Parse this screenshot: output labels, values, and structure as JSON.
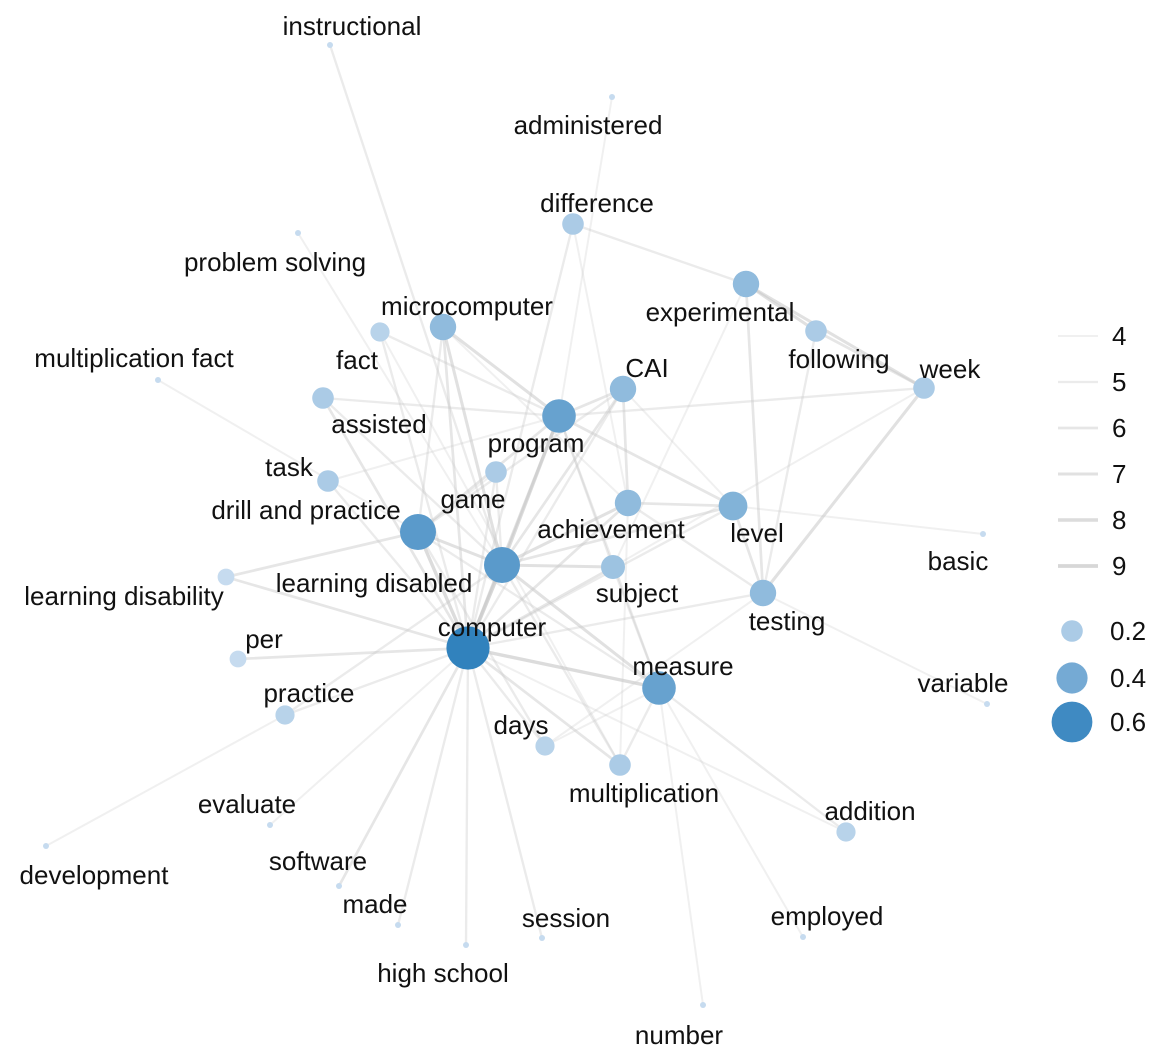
{
  "colors": {
    "edge": "#c8c8c8",
    "node_low": "#c6dbef",
    "node_high": "#3182bd",
    "text": "#111111"
  },
  "legend": {
    "edge_weights": [
      "4",
      "5",
      "6",
      "7",
      "8",
      "9"
    ],
    "node_sizes": [
      "0.2",
      "0.4",
      "0.6"
    ]
  },
  "nodes": [
    {
      "id": "instructional",
      "label": "instructional",
      "size": 0.05
    },
    {
      "id": "administered",
      "label": "administered",
      "size": 0.05
    },
    {
      "id": "difference",
      "label": "difference",
      "size": 0.2
    },
    {
      "id": "problem_solving",
      "label": "problem solving",
      "size": 0.05
    },
    {
      "id": "microcomputer",
      "label": "microcomputer",
      "size": 0.3
    },
    {
      "id": "experimental",
      "label": "experimental",
      "size": 0.3
    },
    {
      "id": "fact",
      "label": "fact",
      "size": 0.15
    },
    {
      "id": "following",
      "label": "following",
      "size": 0.2
    },
    {
      "id": "multiplication_fact",
      "label": "multiplication fact",
      "size": 0.05
    },
    {
      "id": "CAI",
      "label": "CAI",
      "size": 0.3
    },
    {
      "id": "week",
      "label": "week",
      "size": 0.2
    },
    {
      "id": "assisted",
      "label": "assisted",
      "size": 0.2
    },
    {
      "id": "program",
      "label": "program",
      "size": 0.45
    },
    {
      "id": "task",
      "label": "task",
      "size": 0.2
    },
    {
      "id": "game",
      "label": "game",
      "size": 0.2
    },
    {
      "id": "drill_and_practice",
      "label": "drill and practice",
      "size": 0.5
    },
    {
      "id": "achievement",
      "label": "achievement",
      "size": 0.3
    },
    {
      "id": "level",
      "label": "level",
      "size": 0.35
    },
    {
      "id": "basic",
      "label": "basic",
      "size": 0.05
    },
    {
      "id": "learning_disability",
      "label": "learning disability",
      "size": 0.1
    },
    {
      "id": "learning_disabled",
      "label": "learning disabled",
      "size": 0.5
    },
    {
      "id": "subject",
      "label": "subject",
      "size": 0.25
    },
    {
      "id": "testing",
      "label": "testing",
      "size": 0.3
    },
    {
      "id": "computer",
      "label": "computer",
      "size": 0.65
    },
    {
      "id": "per",
      "label": "per",
      "size": 0.1
    },
    {
      "id": "measure",
      "label": "measure",
      "size": 0.45
    },
    {
      "id": "variable",
      "label": "variable",
      "size": 0.05
    },
    {
      "id": "practice",
      "label": "practice",
      "size": 0.15
    },
    {
      "id": "days",
      "label": "days",
      "size": 0.15
    },
    {
      "id": "multiplication",
      "label": "multiplication",
      "size": 0.2
    },
    {
      "id": "evaluate",
      "label": "evaluate",
      "size": 0.05
    },
    {
      "id": "addition",
      "label": "addition",
      "size": 0.15
    },
    {
      "id": "development",
      "label": "development",
      "size": 0.05
    },
    {
      "id": "software",
      "label": "software",
      "size": 0.05
    },
    {
      "id": "made",
      "label": "made",
      "size": 0.05
    },
    {
      "id": "session",
      "label": "session",
      "size": 0.05
    },
    {
      "id": "employed",
      "label": "employed",
      "size": 0.05
    },
    {
      "id": "high_school",
      "label": "high school",
      "size": 0.05
    },
    {
      "id": "number",
      "label": "number",
      "size": 0.05
    }
  ],
  "edges": [
    {
      "source": "instructional",
      "target": "learning_disabled",
      "weight": 5
    },
    {
      "source": "administered",
      "target": "program",
      "weight": 4
    },
    {
      "source": "difference",
      "target": "experimental",
      "weight": 5
    },
    {
      "source": "difference",
      "target": "computer",
      "weight": 5
    },
    {
      "source": "difference",
      "target": "achievement",
      "weight": 4
    },
    {
      "source": "experimental",
      "target": "following",
      "weight": 7
    },
    {
      "source": "experimental",
      "target": "week",
      "weight": 7
    },
    {
      "source": "experimental",
      "target": "testing",
      "weight": 6
    },
    {
      "source": "experimental",
      "target": "subject",
      "weight": 4
    },
    {
      "source": "following",
      "target": "week",
      "weight": 6
    },
    {
      "source": "following",
      "target": "testing",
      "weight": 5
    },
    {
      "source": "week",
      "target": "testing",
      "weight": 7
    },
    {
      "source": "week",
      "target": "program",
      "weight": 5
    },
    {
      "source": "week",
      "target": "subject",
      "weight": 4
    },
    {
      "source": "microcomputer",
      "target": "program",
      "weight": 7
    },
    {
      "source": "microcomputer",
      "target": "learning_disabled",
      "weight": 7
    },
    {
      "source": "microcomputer",
      "target": "computer",
      "weight": 6
    },
    {
      "source": "microcomputer",
      "target": "drill_and_practice",
      "weight": 5
    },
    {
      "source": "microcomputer",
      "target": "achievement",
      "weight": 4
    },
    {
      "source": "problem_solving",
      "target": "learning_disabled",
      "weight": 4
    },
    {
      "source": "fact",
      "target": "program",
      "weight": 5
    },
    {
      "source": "fact",
      "target": "computer",
      "weight": 5
    },
    {
      "source": "fact",
      "target": "multiplication",
      "weight": 4
    },
    {
      "source": "multiplication_fact",
      "target": "drill_and_practice",
      "weight": 4
    },
    {
      "source": "assisted",
      "target": "program",
      "weight": 5
    },
    {
      "source": "assisted",
      "target": "computer",
      "weight": 6
    },
    {
      "source": "assisted",
      "target": "learning_disabled",
      "weight": 5
    },
    {
      "source": "CAI",
      "target": "program",
      "weight": 6
    },
    {
      "source": "CAI",
      "target": "achievement",
      "weight": 6
    },
    {
      "source": "CAI",
      "target": "learning_disabled",
      "weight": 6
    },
    {
      "source": "CAI",
      "target": "drill_and_practice",
      "weight": 5
    },
    {
      "source": "CAI",
      "target": "computer",
      "weight": 5
    },
    {
      "source": "CAI",
      "target": "level",
      "weight": 4
    },
    {
      "source": "program",
      "target": "learning_disabled",
      "weight": 8
    },
    {
      "source": "program",
      "target": "computer",
      "weight": 7
    },
    {
      "source": "program",
      "target": "drill_and_practice",
      "weight": 6
    },
    {
      "source": "program",
      "target": "level",
      "weight": 6
    },
    {
      "source": "program",
      "target": "subject",
      "weight": 5
    },
    {
      "source": "program",
      "target": "measure",
      "weight": 5
    },
    {
      "source": "task",
      "target": "program",
      "weight": 4
    },
    {
      "source": "task",
      "target": "computer",
      "weight": 5
    },
    {
      "source": "game",
      "target": "learning_disabled",
      "weight": 5
    },
    {
      "source": "game",
      "target": "computer",
      "weight": 5
    },
    {
      "source": "game",
      "target": "drill_and_practice",
      "weight": 4
    },
    {
      "source": "drill_and_practice",
      "target": "computer",
      "weight": 8
    },
    {
      "source": "drill_and_practice",
      "target": "learning_disabled",
      "weight": 7
    },
    {
      "source": "drill_and_practice",
      "target": "learning_disability",
      "weight": 6
    },
    {
      "source": "drill_and_practice",
      "target": "days",
      "weight": 5
    },
    {
      "source": "drill_and_practice",
      "target": "measure",
      "weight": 5
    },
    {
      "source": "achievement",
      "target": "learning_disabled",
      "weight": 7
    },
    {
      "source": "achievement",
      "target": "computer",
      "weight": 6
    },
    {
      "source": "achievement",
      "target": "level",
      "weight": 6
    },
    {
      "source": "achievement",
      "target": "testing",
      "weight": 5
    },
    {
      "source": "achievement",
      "target": "multiplication",
      "weight": 4
    },
    {
      "source": "level",
      "target": "learning_disabled",
      "weight": 6
    },
    {
      "source": "level",
      "target": "computer",
      "weight": 5
    },
    {
      "source": "level",
      "target": "basic",
      "weight": 4
    },
    {
      "source": "level",
      "target": "testing",
      "weight": 6
    },
    {
      "source": "learning_disability",
      "target": "computer",
      "weight": 6
    },
    {
      "source": "learning_disabled",
      "target": "computer",
      "weight": 9
    },
    {
      "source": "learning_disabled",
      "target": "subject",
      "weight": 7
    },
    {
      "source": "learning_disabled",
      "target": "measure",
      "weight": 7
    },
    {
      "source": "learning_disabled",
      "target": "multiplication",
      "weight": 5
    },
    {
      "source": "learning_disabled",
      "target": "practice",
      "weight": 5
    },
    {
      "source": "subject",
      "target": "computer",
      "weight": 6
    },
    {
      "source": "subject",
      "target": "measure",
      "weight": 5
    },
    {
      "source": "testing",
      "target": "computer",
      "weight": 5
    },
    {
      "source": "testing",
      "target": "variable",
      "weight": 4
    },
    {
      "source": "testing",
      "target": "days",
      "weight": 4
    },
    {
      "source": "computer",
      "target": "per",
      "weight": 6
    },
    {
      "source": "computer",
      "target": "measure",
      "weight": 8
    },
    {
      "source": "computer",
      "target": "multiplication",
      "weight": 6
    },
    {
      "source": "computer",
      "target": "software",
      "weight": 6
    },
    {
      "source": "computer",
      "target": "made",
      "weight": 5
    },
    {
      "source": "computer",
      "target": "high_school",
      "weight": 5
    },
    {
      "source": "computer",
      "target": "session",
      "weight": 5
    },
    {
      "source": "computer",
      "target": "days",
      "weight": 5
    },
    {
      "source": "computer",
      "target": "evaluate",
      "weight": 4
    },
    {
      "source": "computer",
      "target": "addition",
      "weight": 4
    },
    {
      "source": "measure",
      "target": "multiplication",
      "weight": 5
    },
    {
      "source": "measure",
      "target": "addition",
      "weight": 5
    },
    {
      "source": "measure",
      "target": "employed",
      "weight": 4
    },
    {
      "source": "measure",
      "target": "number",
      "weight": 4
    },
    {
      "source": "measure",
      "target": "days",
      "weight": 4
    },
    {
      "source": "practice",
      "target": "development",
      "weight": 4
    },
    {
      "source": "practice",
      "target": "computer",
      "weight": 5
    }
  ]
}
